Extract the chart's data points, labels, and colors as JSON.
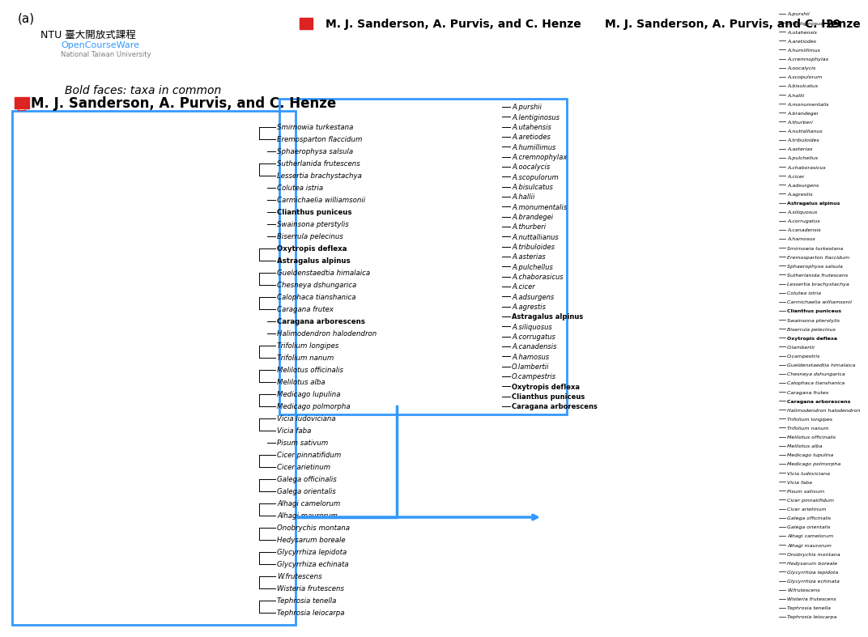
{
  "title": "(a)",
  "citation": "M. J. Sanderson, A. Purvis, and C. Henze",
  "bold_note": "Bold faces: taxa in common",
  "bg_color": "#f0f0f0",
  "left_tree_taxa": [
    "Tephrosia leiocarpa",
    "Tephrosia tenella",
    "Wisteria frutescens",
    "W.frutescens",
    "Glycyrrhiza echinata",
    "Glycyrrhiza lepidota",
    "Hedysarum boreale",
    "Onobrychis montana",
    "Alhagi maurorum",
    "Alhagi camelorum",
    "Galega orientalis",
    "Galega officinalis",
    "Cicer arietinum",
    "Cicer pinnatifidum",
    "Pisum sativum",
    "Vicia faba",
    "Vicia ludoviciana",
    "Medicago polmorpha",
    "Medicago lupulina",
    "Melilotus alba",
    "Melilotus officinalis",
    "Trifolium nanum",
    "Trifolium longipes",
    "Halimodendron halodendron",
    "Caragana arborescens",
    "Caragana frutex",
    "Calophaca tianshanica",
    "Chesneya dshungarica",
    "Gueldenstaedtia himalaica",
    "Astragalus alpinus",
    "Oxytropis deflexa",
    "Biserrula pelecinus",
    "Swainsona pterstylis",
    "Clianthus puniceus",
    "Carmichaelia williamsonii",
    "Colutea istria",
    "Lessertia brachystachya",
    "Sutherlanida frutescens",
    "Sphaerophysa salsula",
    "Eremosparton flaccidum",
    "Smirnowia turkestana"
  ],
  "left_bold": [
    "Caragana arborescens",
    "Astragalus alpinus",
    "Oxytropis deflexa",
    "Clianthus puniceus"
  ],
  "middle_tree_taxa": [
    "Caragana arborescens",
    "Clianthus puniceus",
    "Oxytropis deflexa",
    "O.campestris",
    "O.lambertii",
    "A.hamosus",
    "A.canadensis",
    "A.corrugatus",
    "A.siliquosus",
    "Astragalus alpinus",
    "A.agrestis",
    "A.adsurgens",
    "A.cicer",
    "A.chaborasicus",
    "A.pulchellus",
    "A.asterias",
    "A.tribuloides",
    "A.nuttallianus",
    "A.thurberi",
    "A.brandegei",
    "A.monumentalis",
    "A.hallii",
    "A.bisulcatus",
    "A.scopulorum",
    "A.oocalycis",
    "A.cremnophylax",
    "A.humillimus",
    "A.aretiodes",
    "A.utahensis",
    "A.lentiginosus",
    "A.purshii"
  ],
  "middle_bold": [
    "Caragana arborescens",
    "Clianthus puniceus",
    "Oxytropis deflexa",
    "Astragalus alpinus"
  ],
  "right_tree_taxa": [
    "Tephrosia leiocarpa",
    "Tephrosia tenella",
    "Wisteria frutescens",
    "W.frutescens",
    "Glycyrrhiza echinata",
    "Glycyrrhiza lepidota",
    "Hedysarum boreale",
    "Onobrychis montana",
    "Alhagi maurorum",
    "Alhagi camelorum",
    "Galega orientalis",
    "Galega officinalis",
    "Cicer arietinum",
    "Cicer pinnatifidum",
    "Pisum sativum",
    "Vicia faba",
    "Vicia ludoviciana",
    "Medicago polmorpha",
    "Medicago lupulina",
    "Melilotus alba",
    "Melilotus officinalis",
    "Trifolium nanum",
    "Trifolium longipes",
    "Halimodendron halodendron",
    "Caragana arborescens",
    "Caragana frutex",
    "Calophaca tianshanica",
    "Chesneya dshungarica",
    "Gueldenstaedtia himalaica",
    "O.campestris",
    "O.lambertii",
    "Oxytropis deflexa",
    "Biserrula pelecinus",
    "Swainsona pterstylis",
    "Clianthus puniceus",
    "Carmichaelia williamsonii",
    "Colutea istria",
    "Lessertia brachystachya",
    "Sutherlanida frutescens",
    "Sphaerophysa salsula",
    "Eremosparton flaccidum",
    "Smirnowia turkestana",
    "A.hamosus",
    "A.canadensis",
    "A.corrugatus",
    "A.siliquosus",
    "Astragalus alpinus",
    "A.agrestis",
    "A.adsurgens",
    "A.cicer",
    "A.chaborasicus",
    "A.pulchellus",
    "A.asterias",
    "A.tribuloides",
    "A.nuttallianus",
    "A.thurberi",
    "A.brandegei",
    "A.monumentalis",
    "A.hallii",
    "A.bisulcatus",
    "A.scopulorum",
    "A.oocalycis",
    "A.cremnophylax",
    "A.humillimus",
    "A.aretiodes",
    "A.utahensis",
    "A.lentiginosus",
    "A.purshii"
  ],
  "right_bold": [
    "Caragana arborescens",
    "Oxytropis deflexa",
    "Clianthus puniceus",
    "Astragalus alpinus"
  ],
  "arrow_color": "#0080ff",
  "box_color": "#0080ff",
  "text_color": "#000000",
  "citation_color": "#cc0000",
  "page_number": "29"
}
